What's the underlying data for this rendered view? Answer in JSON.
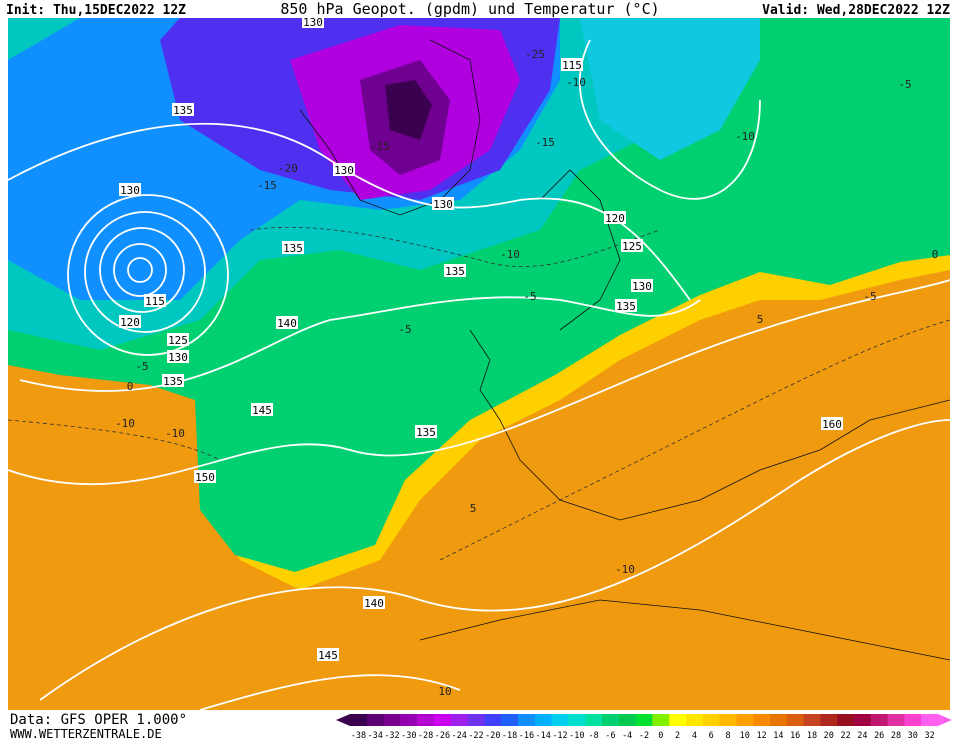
{
  "header": {
    "init": "Init: Thu,15DEC2022 12Z",
    "title": "850 hPa Geopot. (gpdm) und Temperatur (°C)",
    "valid": "Valid: Wed,28DEC2022 12Z"
  },
  "footer": {
    "data": "Data: GFS OPER 1.000°",
    "site": "WWW.WETTERZENTRALE.DE"
  },
  "colorbar": {
    "labels": [
      -38,
      -34,
      -32,
      -30,
      -28,
      -26,
      -24,
      -22,
      -20,
      -18,
      -16,
      -14,
      -12,
      -10,
      -8,
      -6,
      -4,
      -2,
      0,
      2,
      4,
      6,
      8,
      10,
      12,
      14,
      16,
      18,
      20,
      22,
      24,
      26,
      28,
      30,
      32
    ],
    "colors": [
      "#3c0050",
      "#5a0070",
      "#7a0090",
      "#9600b0",
      "#b400d0",
      "#cc00f0",
      "#a020f0",
      "#7030f0",
      "#4040ff",
      "#2060ff",
      "#1090ff",
      "#00b0ff",
      "#00d0f0",
      "#00e0d0",
      "#00e0a0",
      "#00d070",
      "#00c850",
      "#00e030",
      "#80f000",
      "#ffff00",
      "#ffe600",
      "#ffd000",
      "#ffb800",
      "#ffa000",
      "#f58a00",
      "#ea7400",
      "#dc5c10",
      "#c84420",
      "#b02820",
      "#981020",
      "#a00040",
      "#c01870",
      "#e030a0",
      "#ff40d0",
      "#ff60f0"
    ]
  },
  "geopotential_labels": [
    "130",
    "115",
    "135",
    "130",
    "130",
    "130",
    "135",
    "135",
    "115",
    "120",
    "125",
    "130",
    "135",
    "120",
    "125",
    "130",
    "135",
    "140",
    "145",
    "150",
    "135",
    "140",
    "145",
    "160"
  ],
  "temperature_labels": [
    "-25",
    "-10",
    "-15",
    "-20",
    "-15",
    "-15",
    "-10",
    "-5",
    "-5",
    "-10",
    "-5",
    "0",
    "-5",
    "-10",
    "5",
    "5",
    "-10",
    "10",
    "-5",
    "-10",
    "0"
  ]
}
